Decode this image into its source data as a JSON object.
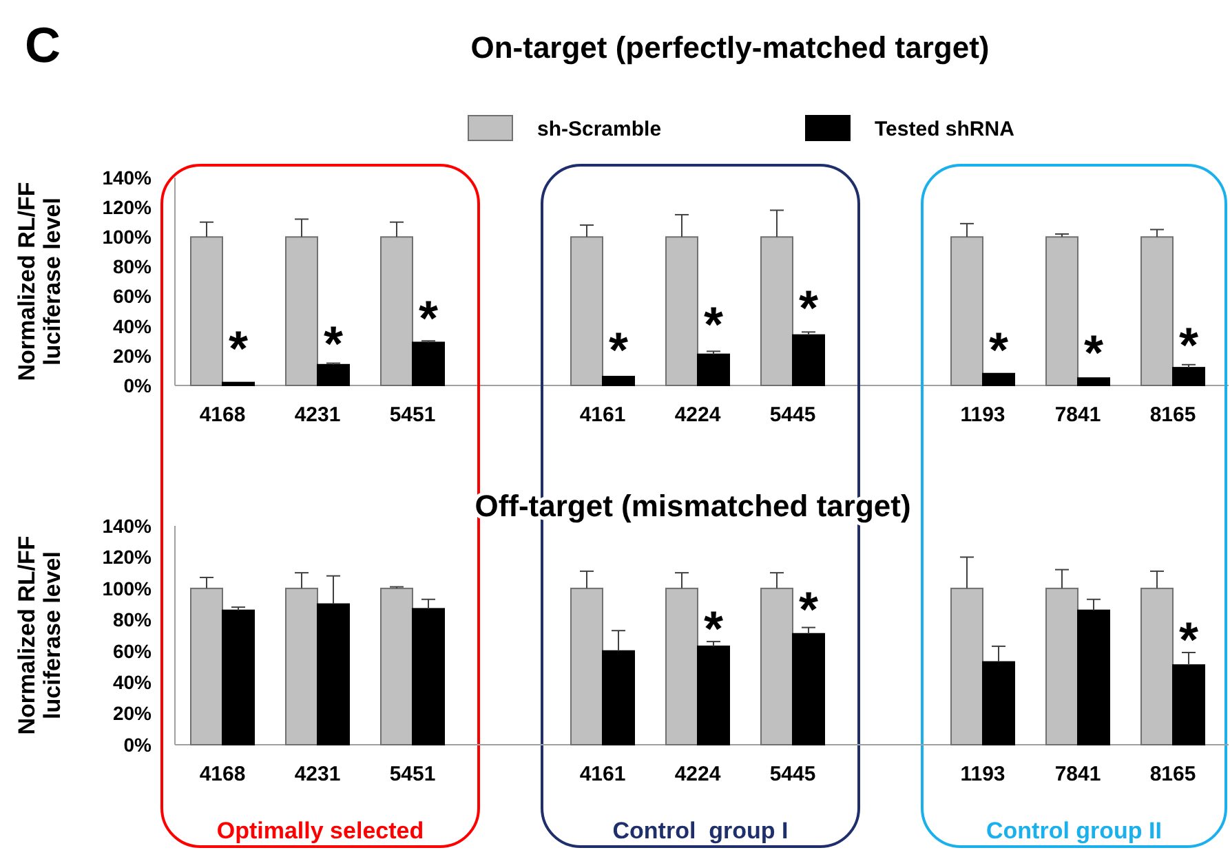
{
  "chart_data": [
    {
      "type": "bar",
      "title": "On-target (perfectly-matched target)",
      "ylabel": "Normalized RL/FF luciferase level",
      "categories": [
        "4168",
        "4231",
        "5451",
        null,
        "4161",
        "4224",
        "5445",
        null,
        "1193",
        "7841",
        "8165"
      ],
      "series": [
        {
          "name": "sh-Scramble",
          "color": "#c0c0c0",
          "values": [
            100,
            100,
            100,
            null,
            100,
            100,
            100,
            null,
            100,
            100,
            100
          ],
          "errors": [
            [
              100,
              110
            ],
            [
              100,
              112
            ],
            [
              100,
              110
            ],
            null,
            [
              100,
              108
            ],
            [
              100,
              115
            ],
            [
              100,
              118
            ],
            null,
            [
              100,
              109
            ],
            [
              100,
              102
            ],
            [
              100,
              105
            ]
          ]
        },
        {
          "name": "Tested shRNA",
          "color": "#000000",
          "values": [
            2,
            14,
            29,
            null,
            6,
            21,
            34,
            null,
            8,
            5,
            12
          ],
          "errors": [
            null,
            [
              14,
              15
            ],
            [
              29,
              30
            ],
            null,
            null,
            [
              21,
              23
            ],
            [
              34,
              36
            ],
            null,
            null,
            null,
            [
              12,
              14
            ]
          ]
        }
      ],
      "ylim": [
        0,
        140
      ],
      "yticks": [
        {
          "value": 0,
          "label": "0%"
        },
        {
          "value": 20,
          "label": "20%"
        },
        {
          "value": 40,
          "label": "40%"
        },
        {
          "value": 60,
          "label": "60%"
        },
        {
          "value": 80,
          "label": "80%"
        },
        {
          "value": 100,
          "label": "100%"
        },
        {
          "value": 120,
          "label": "120%"
        },
        {
          "value": 140,
          "label": "140%"
        }
      ],
      "legend": "top",
      "grid": false,
      "annotations": [
        "C",
        {
          "text": "*",
          "x": "4168",
          "y": 32
        },
        {
          "text": "*",
          "x": "4231",
          "y": 35
        },
        {
          "text": "*",
          "x": "5451",
          "y": 52
        },
        {
          "text": "*",
          "x": "4161",
          "y": 31
        },
        {
          "text": "*",
          "x": "4224",
          "y": 48
        },
        {
          "text": "*",
          "x": "5445",
          "y": 59
        },
        {
          "text": "*",
          "x": "1193",
          "y": 31
        },
        {
          "text": "*",
          "x": "7841",
          "y": 29
        },
        {
          "text": "*",
          "x": "8165",
          "y": 34
        }
      ]
    },
    {
      "type": "bar",
      "title": "Off-target (mismatched target)",
      "ylabel": "Normalized RL/FF luciferase level",
      "categories": [
        "4168",
        "4231",
        "5451",
        null,
        "4161",
        "4224",
        "5445",
        null,
        "1193",
        "7841",
        "8165"
      ],
      "series": [
        {
          "color": "#c0c0c0",
          "values": [
            100,
            100,
            100,
            null,
            100,
            100,
            100,
            null,
            100,
            100,
            100
          ],
          "errors": [
            [
              100,
              107
            ],
            [
              100,
              110
            ],
            [
              100,
              101
            ],
            null,
            [
              100,
              111
            ],
            [
              100,
              110
            ],
            [
              100,
              110
            ],
            null,
            [
              100,
              120
            ],
            [
              100,
              112
            ],
            [
              100,
              111
            ]
          ]
        },
        {
          "color": "#000000",
          "values": [
            86,
            90,
            87,
            null,
            60,
            63,
            71,
            null,
            53,
            86,
            51
          ],
          "errors": [
            [
              86,
              88
            ],
            [
              90,
              108
            ],
            [
              87,
              93
            ],
            null,
            [
              60,
              73
            ],
            [
              63,
              66
            ],
            [
              71,
              75
            ],
            null,
            [
              53,
              63
            ],
            [
              86,
              93
            ],
            [
              51,
              59
            ]
          ]
        }
      ],
      "ylim": [
        0,
        140
      ],
      "yticks": [
        {
          "value": 0,
          "label": "0%"
        },
        {
          "value": 20,
          "label": "20%"
        },
        {
          "value": 40,
          "label": "40%"
        },
        {
          "value": 60,
          "label": "60%"
        },
        {
          "value": 80,
          "label": "80%"
        },
        {
          "value": 100,
          "label": "100%"
        },
        {
          "value": 120,
          "label": "120%"
        },
        {
          "value": 140,
          "label": "140%"
        }
      ],
      "legend": false,
      "grid": false,
      "annotations": [
        "Optimally selected",
        "Control  group I",
        "Control group II",
        {
          "text": "*",
          "x": "4224",
          "y": 81
        },
        {
          "text": "*",
          "x": "5445",
          "y": 93
        },
        {
          "text": "*",
          "x": "8165",
          "y": 74
        }
      ]
    }
  ]
}
